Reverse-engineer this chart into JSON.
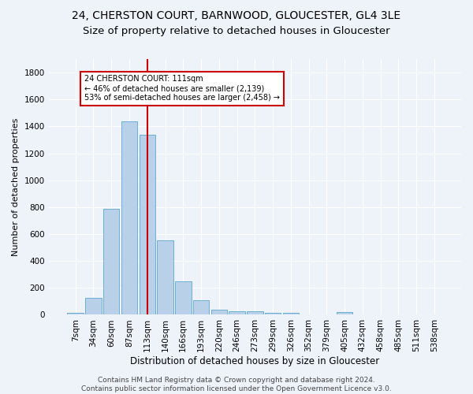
{
  "title1": "24, CHERSTON COURT, BARNWOOD, GLOUCESTER, GL4 3LE",
  "title2": "Size of property relative to detached houses in Gloucester",
  "xlabel": "Distribution of detached houses by size in Gloucester",
  "ylabel": "Number of detached properties",
  "bar_labels": [
    "7sqm",
    "34sqm",
    "60sqm",
    "87sqm",
    "113sqm",
    "140sqm",
    "166sqm",
    "193sqm",
    "220sqm",
    "246sqm",
    "273sqm",
    "299sqm",
    "326sqm",
    "352sqm",
    "379sqm",
    "405sqm",
    "432sqm",
    "458sqm",
    "485sqm",
    "511sqm",
    "538sqm"
  ],
  "bar_values": [
    15,
    125,
    790,
    1440,
    1340,
    555,
    248,
    110,
    35,
    28,
    28,
    15,
    15,
    0,
    0,
    22,
    0,
    0,
    0,
    0,
    0
  ],
  "bar_color": "#b8d0e8",
  "bar_edge_color": "#6baed6",
  "vline_x_index": 4,
  "vline_color": "#cc0000",
  "annotation_lines": [
    "24 CHERSTON COURT: 111sqm",
    "← 46% of detached houses are smaller (2,139)",
    "53% of semi-detached houses are larger (2,458) →"
  ],
  "annotation_box_color": "#ffffff",
  "annotation_box_edge": "#cc0000",
  "ylim": [
    0,
    1900
  ],
  "yticks": [
    0,
    200,
    400,
    600,
    800,
    1000,
    1200,
    1400,
    1600,
    1800
  ],
  "bg_color": "#eef2f9",
  "grid_color": "#ffffff",
  "footer": "Contains HM Land Registry data © Crown copyright and database right 2024.\nContains public sector information licensed under the Open Government Licence v3.0.",
  "title1_fontsize": 10,
  "title2_fontsize": 9.5,
  "xlabel_fontsize": 8.5,
  "ylabel_fontsize": 8,
  "tick_fontsize": 7.5,
  "footer_fontsize": 6.5
}
